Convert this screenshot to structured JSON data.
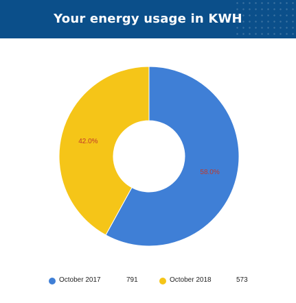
{
  "header": {
    "title": "Your energy usage in KWH"
  },
  "chart_data": {
    "type": "pie",
    "title": "Your energy usage in KWH",
    "donut": true,
    "categories": [
      "October 2017",
      "October 2018"
    ],
    "values": [
      791,
      573
    ],
    "percent_labels": [
      "58.0%",
      "42.0%"
    ],
    "colors": [
      "#3f7fd6",
      "#f5c518"
    ],
    "legend_position": "bottom"
  },
  "legend": {
    "items": [
      {
        "label": "October 2017",
        "value": "791",
        "color": "#3f7fd6"
      },
      {
        "label": "October 2018",
        "value": "573",
        "color": "#f5c518"
      }
    ]
  }
}
